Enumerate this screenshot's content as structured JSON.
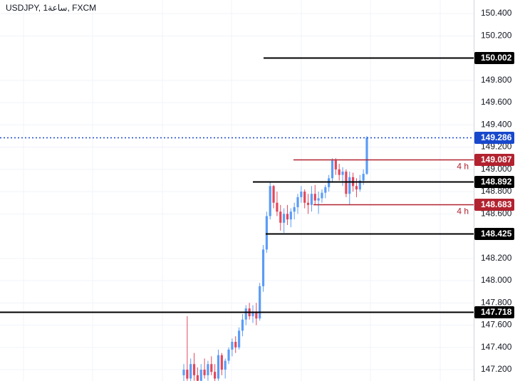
{
  "chart_data": {
    "type": "candlestick",
    "title": "USDJPY, 1ساعة, FXCM",
    "up_color": "#5b9cf6",
    "down_color": "#e0485c",
    "ylim": [
      150.522,
      147.098
    ],
    "yticks": [
      {
        "value": 150.4,
        "label": "150.400"
      },
      {
        "value": 150.2,
        "label": "150.200"
      },
      {
        "value": 149.8,
        "label": "149.800"
      },
      {
        "value": 149.6,
        "label": "149.600"
      },
      {
        "value": 149.4,
        "label": "149.400"
      },
      {
        "value": 149.2,
        "label": "149.200"
      },
      {
        "value": 149.0,
        "label": "149.000"
      },
      {
        "value": 148.8,
        "label": "148.800"
      },
      {
        "value": 148.6,
        "label": "148.600"
      },
      {
        "value": 148.2,
        "label": "148.200"
      },
      {
        "value": 148.0,
        "label": "148.000"
      },
      {
        "value": 147.8,
        "label": "147.800"
      },
      {
        "value": 147.6,
        "label": "147.600"
      },
      {
        "value": 147.4,
        "label": "147.400"
      },
      {
        "value": 147.2,
        "label": "147.200"
      }
    ],
    "grid": true,
    "open": [
      147.15,
      147.2,
      147.12,
      147.25,
      147.15,
      147.1,
      147.2,
      147.15,
      147.25,
      147.18,
      147.12,
      147.33,
      147.2,
      147.28,
      147.38,
      147.45,
      147.4,
      147.55,
      147.65,
      147.75,
      147.68,
      147.72,
      147.66,
      147.95,
      148.28,
      148.58,
      148.85,
      148.7,
      148.62,
      148.52,
      148.6,
      148.55,
      148.62,
      148.66,
      148.75,
      148.8,
      148.7,
      148.68,
      148.78,
      148.72,
      148.74,
      148.79,
      148.84,
      148.92,
      149.08,
      149.0,
      148.95,
      148.98,
      148.78,
      148.93,
      148.85,
      148.82,
      148.9,
      148.96
    ],
    "high": [
      147.25,
      147.68,
      147.3,
      147.35,
      147.22,
      147.25,
      147.3,
      147.28,
      147.32,
      147.25,
      147.38,
      147.35,
      147.3,
      147.4,
      147.48,
      147.5,
      147.58,
      147.7,
      147.78,
      147.8,
      147.78,
      147.8,
      147.98,
      148.32,
      148.62,
      148.88,
      148.86,
      148.8,
      148.68,
      148.65,
      148.68,
      148.65,
      148.7,
      148.78,
      148.85,
      148.82,
      148.78,
      148.85,
      148.86,
      148.8,
      148.82,
      148.86,
      148.95,
      149.1,
      149.1,
      149.05,
      149.02,
      149.0,
      148.98,
      148.97,
      148.92,
      148.95,
      149.0,
      149.3
    ],
    "low": [
      147.05,
      147.1,
      147.05,
      147.1,
      147.05,
      147.05,
      147.12,
      147.1,
      147.15,
      147.08,
      147.1,
      147.15,
      147.12,
      147.25,
      147.32,
      147.35,
      147.38,
      147.5,
      147.6,
      147.65,
      147.62,
      147.6,
      147.64,
      147.9,
      148.25,
      148.55,
      148.65,
      148.58,
      148.45,
      148.43,
      148.5,
      148.48,
      148.55,
      148.6,
      148.7,
      148.65,
      148.6,
      148.62,
      148.68,
      148.6,
      148.7,
      148.74,
      148.8,
      148.88,
      148.95,
      148.9,
      148.85,
      148.75,
      148.68,
      148.8,
      148.75,
      148.8,
      148.86,
      148.95
    ],
    "close": [
      147.2,
      147.12,
      147.25,
      147.15,
      147.1,
      147.2,
      147.15,
      147.25,
      147.18,
      147.12,
      147.33,
      147.2,
      147.28,
      147.38,
      147.45,
      147.4,
      147.55,
      147.65,
      147.75,
      147.68,
      147.72,
      147.66,
      147.95,
      148.28,
      148.58,
      148.85,
      148.7,
      148.62,
      148.52,
      148.6,
      148.55,
      148.62,
      148.66,
      148.75,
      148.8,
      148.7,
      148.68,
      148.78,
      148.72,
      148.74,
      148.79,
      148.84,
      148.92,
      149.08,
      149.0,
      148.95,
      148.98,
      148.78,
      148.93,
      148.85,
      148.82,
      148.9,
      148.96,
      149.286
    ],
    "levels": [
      {
        "value": 150.002,
        "color": "#000000"
      },
      {
        "value": 149.286,
        "color": "#1848cc",
        "style": "dotted"
      },
      {
        "value": 149.087,
        "color": "#b2222f",
        "note": "4 h"
      },
      {
        "value": 148.892,
        "color": "#000000"
      },
      {
        "value": 148.683,
        "color": "#b2222f",
        "note": "4 h"
      },
      {
        "value": 148.425,
        "color": "#000000"
      },
      {
        "value": 147.718,
        "color": "#000000"
      }
    ]
  }
}
